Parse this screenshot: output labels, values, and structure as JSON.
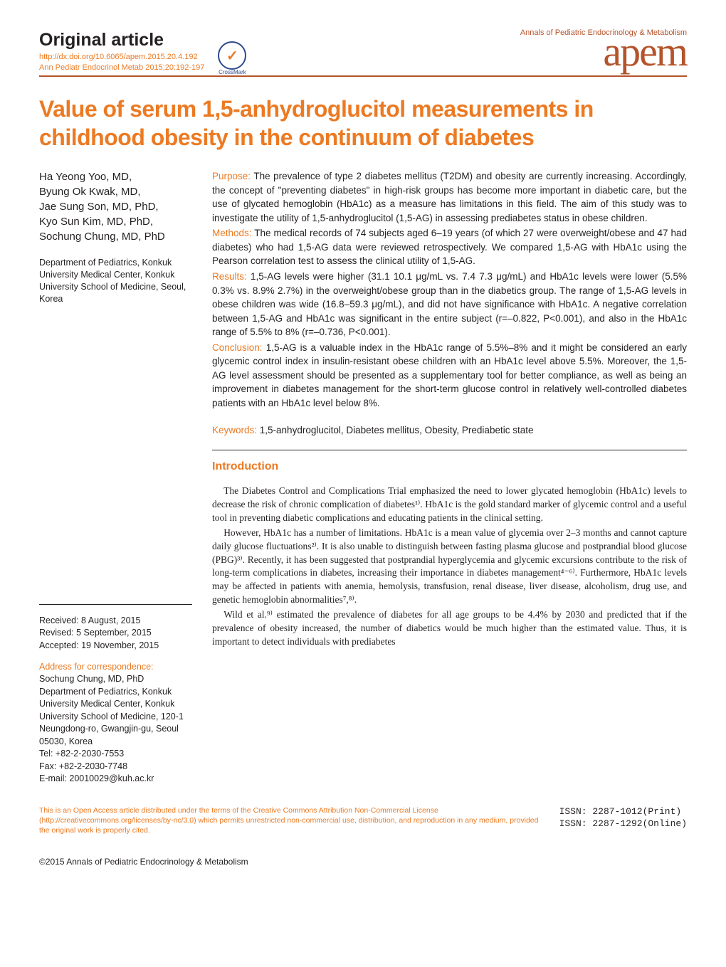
{
  "colors": {
    "accent_orange": "#ec7a23",
    "brand_brown": "#b5532a",
    "text_primary": "#231f20",
    "background": "#ffffff",
    "crossmark_blue": "#2e4a8c"
  },
  "typography": {
    "body_family": "Georgia, 'Times New Roman', serif",
    "sans_family": "Arial, Helvetica, sans-serif",
    "mono_family": "'Courier New', monospace",
    "title_size_pt": 32,
    "article_type_size_pt": 25,
    "brand_logo_size_pt": 58,
    "body_size_pt": 13.5,
    "sidebar_size_pt": 12.5,
    "footer_size_pt": 12
  },
  "header": {
    "article_type": "Original article",
    "doi": "http://dx.doi.org/10.6065/apem.2015.20.4.192",
    "citation": "Ann Pediatr Endocrinol Metab 2015;20:192-197",
    "crossmark_label": "CrossMark",
    "annals_line": "Annals of Pediatric Endocrinology & Metabolism",
    "brand": "apem"
  },
  "title": "Value of serum 1,5-anhydroglucitol measurements in childhood obesity in the continuum of diabetes",
  "authors": [
    "Ha Yeong Yoo, MD,",
    "Byung Ok Kwak, MD,",
    "Jae Sung Son, MD, PhD,",
    "Kyo Sun Kim, MD, PhD,",
    "Sochung Chung, MD, PhD"
  ],
  "affiliation": "Department of Pediatrics, Konkuk University Medical Center, Konkuk University School of Medicine, Seoul, Korea",
  "dates": {
    "received": "Received: 8 August, 2015",
    "revised": "Revised: 5 September, 2015",
    "accepted": "Accepted: 19 November, 2015"
  },
  "correspondence": {
    "label": "Address for correspondence:",
    "name": "Sochung Chung, MD, PhD",
    "dept": "Department of Pediatrics, Konkuk University Medical Center, Konkuk University School of Medicine, 120-1 Neungdong-ro, Gwangjin-gu, Seoul 05030, Korea",
    "tel": "Tel: +82-2-2030-7553",
    "fax": "Fax: +82-2-2030-7748",
    "email": "E-mail: 20010029@kuh.ac.kr"
  },
  "abstract": {
    "purpose_label": "Purpose:",
    "purpose": " The prevalence of type 2 diabetes mellitus (T2DM) and obesity are currently increasing. Accordingly, the concept of \"preventing diabetes\" in high-risk groups has become more important in diabetic care, but the use of glycated hemoglobin (HbA1c) as a measure has limitations in this field. The aim of this study was to investigate the utility of 1,5-anhydroglucitol (1,5-AG) in assessing prediabetes status in obese children.",
    "methods_label": "Methods:",
    "methods": " The medical records of 74 subjects aged 6–19 years (of which 27 were overweight/obese and 47 had diabetes) who had 1,5-AG data were reviewed retrospectively. We compared 1,5-AG with HbA1c using the Pearson correlation test to assess the clinical utility of 1,5-AG.",
    "results_label": "Results:",
    "results": " 1,5-AG levels were higher (31.1  10.1 μg/mL vs. 7.4  7.3 μg/mL) and HbA1c levels were lower (5.5%  0.3% vs. 8.9%  2.7%) in the overweight/obese group than in the diabetics group. The range of 1,5-AG levels in obese children was wide (16.8–59.3 μg/mL), and did not have significance with HbA1c. A negative correlation between 1,5-AG and HbA1c was significant in the entire subject (r=–0.822, P<0.001), and also in the HbA1c range of 5.5% to 8% (r=–0.736, P<0.001).",
    "conclusion_label": "Conclusion:",
    "conclusion": " 1,5-AG is a valuable index in the HbA1c range of 5.5%–8% and it might be considered an early glycemic control index in insulin-resistant obese children with an HbA1c level above 5.5%. Moreover, the 1,5-AG level assessment should be presented as a supplementary tool for better compliance, as well as being an improvement in diabetes management for the short-term glucose control in relatively well-controlled diabetes patients with an HbA1c level below 8%.",
    "keywords_label": "Keywords:",
    "keywords": " 1,5-anhydroglucitol, Diabetes mellitus, Obesity, Prediabetic state"
  },
  "sections": {
    "intro_heading": "Introduction",
    "intro_p1": "The Diabetes Control and Complications Trial emphasized the need to lower glycated hemoglobin (HbA1c) levels to decrease the risk of chronic complication of diabetes¹⁾. HbA1c is the gold standard marker of glycemic control and a useful tool in preventing diabetic complications and educating patients in the clinical setting.",
    "intro_p2": "However, HbA1c has a number of limitations. HbA1c is a mean value of glycemia over 2–3 months and cannot capture daily glucose fluctuations²⁾. It is also unable to distinguish between fasting plasma glucose and postprandial blood glucose (PBG)³⁾. Recently, it has been suggested that postprandial hyperglycemia and glycemic excursions contribute to the risk of long-term complications in diabetes, increasing their importance in diabetes management⁴⁻⁶⁾. Furthermore, HbA1c levels may be affected in patients with anemia, hemolysis, transfusion, renal disease, liver disease, alcoholism, drug use, and genetic hemoglobin abnormalities⁷,⁸⁾.",
    "intro_p3": "Wild et al.⁹⁾ estimated the prevalence of diabetes for all age groups to be 4.4% by 2030 and predicted that if the prevalence of obesity increased, the number of diabetics would be much higher than the estimated value. Thus, it is important to detect individuals with prediabetes"
  },
  "license": "This is an Open Access article distributed under the terms of the Creative Commons Attribution Non-Commercial License (http://creativecommons.org/licenses/by-nc/3.0) which permits unrestricted non-commercial use, distribution, and reproduction in any medium, provided the original work is properly cited.",
  "issn": {
    "print": "ISSN: 2287-1012(Print)",
    "online": "ISSN: 2287-1292(Online)"
  },
  "copyright": "©2015 Annals of Pediatric Endocrinology & Metabolism"
}
